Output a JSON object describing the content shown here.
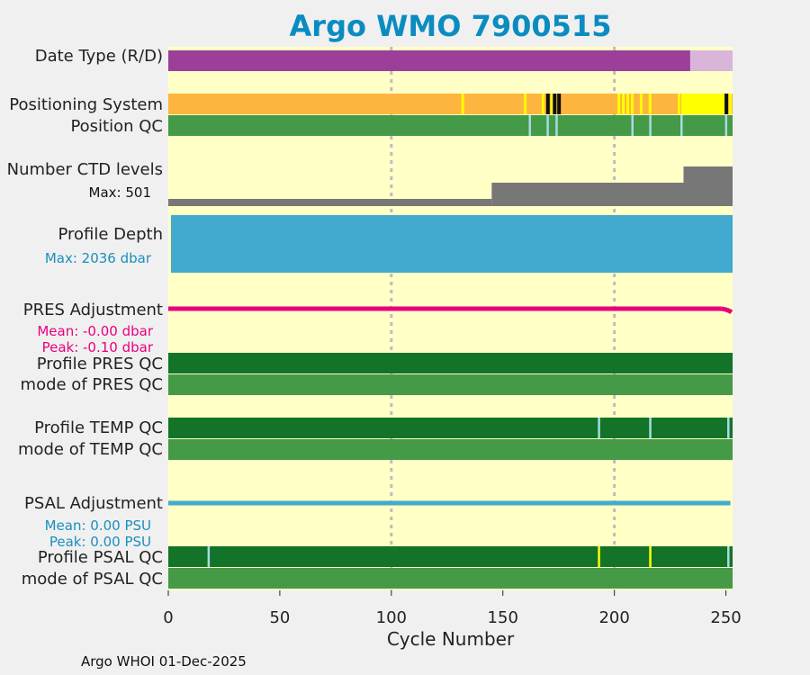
{
  "title": "Argo WMO 7900515",
  "footer": "Argo WHOI 01-Dec-2025",
  "colors": {
    "panel_bg": "#ffffc6",
    "realtime": "#9b3f99",
    "delayed": "#dab5da",
    "gps": "#fdb53f",
    "iridium": "#ffff00",
    "qc_good": "#449a46",
    "qc_dark": "#137328",
    "qc_light": "#aad9e3",
    "black": "#111111",
    "ctd": "#777777",
    "depth": "#42aacf",
    "pres": "#e8007e",
    "psal": "#42aacf"
  },
  "row_labels": {
    "date_type": "Date Type (R/D)",
    "positioning": "Positioning System",
    "position_qc": "Position QC",
    "ctd_levels": "Number CTD levels",
    "ctd_max": "Max: 501",
    "profile_depth": "Profile Depth",
    "depth_max": "Max: 2036 dbar",
    "pres_adj": "PRES Adjustment",
    "pres_mean": "Mean: -0.00 dbar",
    "pres_peak": "Peak: -0.10 dbar",
    "pres_qc": "Profile PRES QC",
    "pres_mode": "mode of PRES QC",
    "temp_qc": "Profile TEMP QC",
    "temp_mode": "mode of TEMP QC",
    "psal_adj": "PSAL Adjustment",
    "psal_mean": "Mean: 0.00 PSU",
    "psal_peak": "Peak: 0.00 PSU",
    "psal_qc": "Profile PSAL QC",
    "psal_mode": "mode of PSAL QC"
  },
  "chart_data": {
    "type": "bar",
    "xlabel": "Cycle Number",
    "xlim": [
      0,
      253
    ],
    "xticks": [
      0,
      50,
      100,
      150,
      200,
      250
    ],
    "grid_x": [
      100,
      200
    ],
    "date_type_segments": [
      {
        "from": 0,
        "to": 234,
        "mode": "realtime"
      },
      {
        "from": 234,
        "to": 253,
        "mode": "delayed"
      }
    ],
    "positioning_events": [
      {
        "cycle": 132,
        "system": "iridium"
      },
      {
        "cycle": 160,
        "system": "iridium"
      },
      {
        "cycle": 168,
        "system": "iridium"
      },
      {
        "cycle": 170,
        "system": "black"
      },
      {
        "cycle": 172,
        "system": "iridium"
      },
      {
        "cycle": 173,
        "system": "black"
      },
      {
        "cycle": 175,
        "system": "black"
      },
      {
        "cycle": 202,
        "system": "iridium"
      },
      {
        "cycle": 204,
        "system": "iridium"
      },
      {
        "cycle": 206,
        "system": "iridium"
      },
      {
        "cycle": 208,
        "system": "iridium"
      },
      {
        "cycle": 212,
        "system": "iridium"
      },
      {
        "cycle": 216,
        "system": "iridium"
      },
      {
        "cycle": 229,
        "system": "iridium"
      },
      {
        "cycle": 250,
        "system": "black"
      },
      {
        "cycle": 252,
        "system": "iridium"
      }
    ],
    "positioning_iridium_run": [
      230,
      250
    ],
    "position_qc_flags": [
      162,
      170,
      174,
      208,
      216,
      230,
      250
    ],
    "ctd_levels": [
      {
        "from": 0,
        "to": 145,
        "value": 40
      },
      {
        "from": 145,
        "to": 231,
        "value": 130
      },
      {
        "from": 231,
        "to": 253,
        "value": 220
      }
    ],
    "ctd_max": 501,
    "profile_depth_max": 2036,
    "pres_adjustment": {
      "mean": -0.0,
      "peak": -0.1
    },
    "pres_qc_flags": [],
    "temp_qc_flags": [
      193,
      216,
      251
    ],
    "psal_adjustment": {
      "mean": 0.0,
      "peak": 0.0
    },
    "psal_qc_flags": [
      {
        "cycle": 18,
        "flag": "light"
      },
      {
        "cycle": 193,
        "flag": "iridium"
      },
      {
        "cycle": 216,
        "flag": "iridium"
      },
      {
        "cycle": 251,
        "flag": "light"
      }
    ]
  }
}
